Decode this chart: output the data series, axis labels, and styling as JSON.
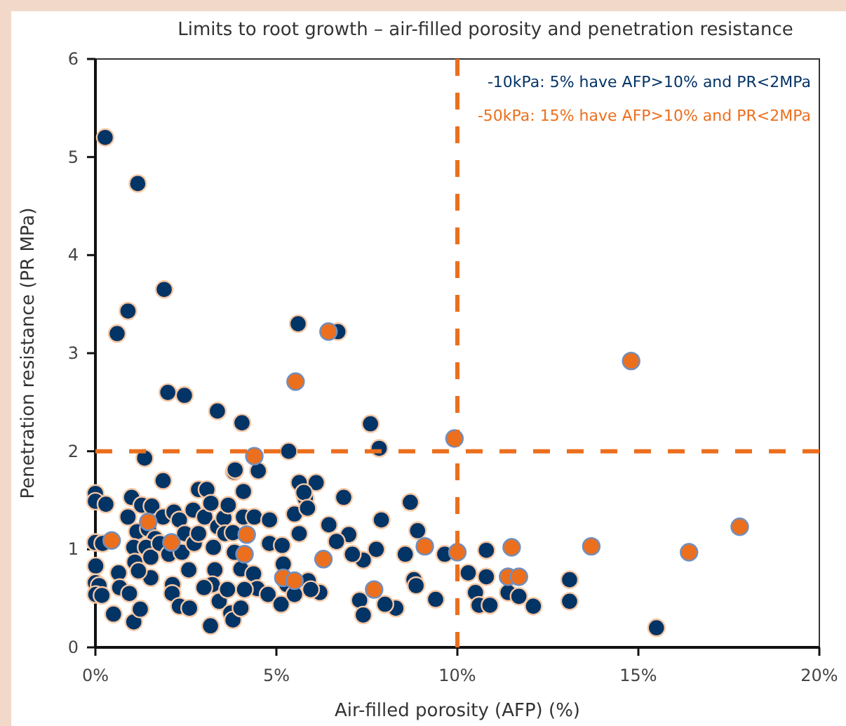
{
  "chart_data": {
    "type": "scatter",
    "title": "Limits to root growth – air-filled porosity and penetration resistance",
    "xlabel": "Air-filled porosity (AFP) (%)",
    "ylabel": "Penetration resistance (PR MPa)",
    "xlim": [
      0,
      20
    ],
    "xticks": [
      {
        "value": 0,
        "label": "0%"
      },
      {
        "value": 5,
        "label": "5%"
      },
      {
        "value": 10,
        "label": "10%"
      },
      {
        "value": 15,
        "label": "15%"
      },
      {
        "value": 20,
        "label": "20%"
      }
    ],
    "ylim": [
      0,
      6
    ],
    "yticks": [
      0,
      1,
      2,
      3,
      4,
      5,
      6
    ],
    "marker": "circle",
    "legend": "top right",
    "ref_lines": [
      {
        "axis": "x",
        "value": 10,
        "color": "#ec6f1e",
        "line_style": "dashed"
      },
      {
        "axis": "y",
        "value": 2,
        "color": "#ec6f1e",
        "line_style": "dashed"
      }
    ],
    "series": [
      {
        "name": "-10kPa: 5% have AFP>10% and PR<2MPa",
        "color": "#033466",
        "x": [
          0.27,
          1.17,
          0.6,
          0.9,
          1.9,
          2.0,
          2.46,
          3.37,
          4.05,
          1.36,
          5.6,
          6.7,
          7.6,
          7.84,
          5.34,
          3.83,
          4.5,
          9.65,
          10.8,
          10.3,
          10.8,
          10.5,
          10.6,
          10.9,
          11.4,
          11.7,
          12.1,
          13.1,
          13.1,
          15.5,
          9.4,
          8.3,
          8.0,
          7.3,
          7.4,
          8.8,
          8.86,
          8.7,
          8.9,
          8.56,
          7.9,
          6.86,
          7.76,
          7.4,
          7.1,
          7.0,
          6.45,
          6.66,
          6.2,
          6.1,
          5.8,
          0,
          0,
          0.29,
          0,
          0.2,
          0.01,
          0,
          0.1,
          0.01,
          0.18,
          0.5,
          1.06,
          1.24,
          0.64,
          0.67,
          0.94,
          1.0,
          0.9,
          1.28,
          1.56,
          1.15,
          1.46,
          1.65,
          1.87,
          1.87,
          1.06,
          1.09,
          1.4,
          1.53,
          1.53,
          1.19,
          1.78,
          2.03,
          2.17,
          2.32,
          2.47,
          2.39,
          2.13,
          2.12,
          2.32,
          2.6,
          2.58,
          2.73,
          2.7,
          2.85,
          2.85,
          3.08,
          3.02,
          3.19,
          3.26,
          3.3,
          3.23,
          3.0,
          3.42,
          3.18,
          3.38,
          3.55,
          3.67,
          3.58,
          3.8,
          3.84,
          3.65,
          3.74,
          3.8,
          4.02,
          3.86,
          4.09,
          4.09,
          4.02,
          4.39,
          4.37,
          4.47,
          4.12,
          4.77,
          4.81,
          4.81,
          5.16,
          5.13,
          5.19,
          5.29,
          5.5,
          5.63,
          5.76,
          5.86,
          5.63,
          5.88,
          5.95,
          5.5
        ],
        "values": [
          5.2,
          4.73,
          3.2,
          3.43,
          3.65,
          2.6,
          2.57,
          2.41,
          2.29,
          1.93,
          3.3,
          3.22,
          2.28,
          2.03,
          2.0,
          1.79,
          1.8,
          0.95,
          0.99,
          0.76,
          0.72,
          0.56,
          0.43,
          0.43,
          0.56,
          0.52,
          0.42,
          0.69,
          0.47,
          0.2,
          0.49,
          0.4,
          0.44,
          0.48,
          0.33,
          0.69,
          0.63,
          1.48,
          1.19,
          0.95,
          1.3,
          1.53,
          1.0,
          0.89,
          0.95,
          1.15,
          1.25,
          1.08,
          0.56,
          1.68,
          1.52,
          1.57,
          1.49,
          1.46,
          1.07,
          1.06,
          0.83,
          0.66,
          0.63,
          0.54,
          0.53,
          0.34,
          0.26,
          0.39,
          0.76,
          0.61,
          0.55,
          1.53,
          1.33,
          1.45,
          1.44,
          1.18,
          1.21,
          1.11,
          1.33,
          1.7,
          1.02,
          0.87,
          1.02,
          0.92,
          0.71,
          0.78,
          1.06,
          0.95,
          1.38,
          1.3,
          1.16,
          0.97,
          0.64,
          0.55,
          0.42,
          0.4,
          0.79,
          1.06,
          1.4,
          1.16,
          1.61,
          1.61,
          1.33,
          1.47,
          1.02,
          0.79,
          0.64,
          0.61,
          0.47,
          0.22,
          1.23,
          1.32,
          1.45,
          1.16,
          1.17,
          0.97,
          0.59,
          0.35,
          0.28,
          0.4,
          1.81,
          1.59,
          1.33,
          0.8,
          1.33,
          0.75,
          0.6,
          0.59,
          0.54,
          1.3,
          1.06,
          1.04,
          0.44,
          0.85,
          0.64,
          1.36,
          1.68,
          1.58,
          1.42,
          1.16,
          0.68,
          0.59,
          0.54
        ]
      },
      {
        "name": "-50kPa: 15% have AFP>10% and PR<2MPa",
        "color": "#ec6f1e",
        "x": [
          6.44,
          5.53,
          9.92,
          4.39,
          14.8,
          17.8,
          16.4,
          13.7,
          11.5,
          10.0,
          11.4,
          11.7,
          7.7,
          6.3,
          9.1,
          0.45,
          2.1,
          4.18,
          4.12,
          5.19,
          1.46,
          5.5
        ],
        "values": [
          3.22,
          2.71,
          2.13,
          1.95,
          2.92,
          1.23,
          0.97,
          1.03,
          1.02,
          0.97,
          0.72,
          0.72,
          0.59,
          0.9,
          1.03,
          1.09,
          1.07,
          1.15,
          0.95,
          0.71,
          1.28,
          0.68
        ]
      }
    ]
  }
}
